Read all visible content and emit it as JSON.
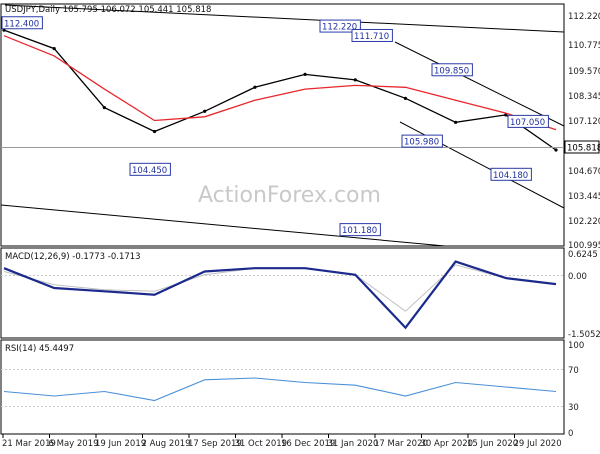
{
  "header": {
    "text": "USDJPY,Daily  105.795 106.072 105.441 105.818"
  },
  "watermark": "ActionForex.com",
  "price_pane": {
    "y_ticks": [
      "112.220",
      "110.775",
      "109.570",
      "108.345",
      "107.120",
      "105.818",
      "104.670",
      "103.445",
      "102.220",
      "100.995"
    ],
    "last_price": "105.818"
  },
  "macd_pane": {
    "title": "MACD(12,26,9) -0.1773 -0.1713",
    "y_ticks": [
      "0.6245",
      "0.00",
      "-1.5052"
    ]
  },
  "rsi_pane": {
    "title": "RSI(14) 45.4497",
    "y_ticks": [
      "100",
      "70",
      "30",
      "0"
    ]
  },
  "x_axis": {
    "labels": [
      "21 Mar 2019",
      "6 May 2019",
      "19 Jun 2019",
      "2 Aug 2019",
      "17 Sep 2019",
      "31 Oct 2019",
      "16 Dec 2019",
      "31 Jan 2020",
      "17 Mar 2020",
      "30 Apr 2020",
      "15 Jun 2020",
      "29 Jul 2020"
    ]
  },
  "colors": {
    "candle": "#000000",
    "moving_average": "#e8262c",
    "macd": "#1b2a8c",
    "signal": "#c0c0c0",
    "rsi": "#4a90d9",
    "annotation": "#2a3aa8"
  },
  "chart_data": [
    {
      "type": "line",
      "title": "USDJPY,Daily  105.795 106.072 105.441 105.818",
      "y_scale": "linear",
      "ylim": [
        100.4,
        113.2
      ],
      "x": [
        "21 Mar 2019",
        "6 May 2019",
        "19 Jun 2019",
        "2 Aug 2019",
        "17 Sep 2019",
        "31 Oct 2019",
        "16 Dec 2019",
        "31 Jan 2020",
        "17 Mar 2020",
        "30 Apr 2020",
        "15 Jun 2020",
        "29 Jul 2020"
      ],
      "series": [
        {
          "values": [
            112.0,
            111.0,
            107.8,
            106.5,
            107.6,
            108.9,
            109.6,
            109.3,
            108.3,
            107.0,
            107.4,
            105.5
          ]
        },
        {
          "values": [
            111.7,
            110.6,
            108.8,
            107.1,
            107.3,
            108.2,
            108.8,
            109.0,
            108.9,
            108.2,
            107.5,
            106.6
          ]
        }
      ],
      "annotations": [
        {
          "label": "112.400",
          "value": 112.4
        },
        {
          "label": "104.450",
          "value": 104.45
        },
        {
          "label": "112.220",
          "value": 112.22
        },
        {
          "label": "111.710",
          "value": 111.71
        },
        {
          "label": "101.180",
          "value": 101.18
        },
        {
          "label": "109.850",
          "value": 109.85
        },
        {
          "label": "105.980",
          "value": 105.98
        },
        {
          "label": "107.050",
          "value": 107.05
        },
        {
          "label": "104.180",
          "value": 104.18
        }
      ],
      "last_value": 105.818,
      "grid": false
    },
    {
      "type": "line",
      "title": "MACD(12,26,9) -0.1773 -0.1713",
      "ylim": [
        -1.75,
        0.85
      ],
      "x": [
        "21 Mar 2019",
        "6 May 2019",
        "19 Jun 2019",
        "2 Aug 2019",
        "17 Sep 2019",
        "31 Oct 2019",
        "16 Dec 2019",
        "31 Jan 2020",
        "17 Mar 2020",
        "30 Apr 2020",
        "15 Jun 2020",
        "29 Jul 2020"
      ],
      "series": [
        {
          "values": [
            0.3,
            -0.3,
            -0.4,
            -0.5,
            0.2,
            0.3,
            0.3,
            0.1,
            -1.5,
            0.5,
            0.0,
            -0.18
          ]
        },
        {
          "values": [
            0.2,
            -0.2,
            -0.35,
            -0.4,
            0.1,
            0.3,
            0.3,
            0.1,
            -1.0,
            0.4,
            0.0,
            -0.17
          ]
        }
      ]
    },
    {
      "type": "line",
      "title": "RSI(14) 45.4497",
      "ylim": [
        0,
        100
      ],
      "x": [
        "21 Mar 2019",
        "6 May 2019",
        "19 Jun 2019",
        "2 Aug 2019",
        "17 Sep 2019",
        "31 Oct 2019",
        "16 Dec 2019",
        "31 Jan 2020",
        "17 Mar 2020",
        "30 Apr 2020",
        "15 Jun 2020",
        "29 Jul 2020"
      ],
      "series": [
        {
          "values": [
            45,
            40,
            45,
            35,
            58,
            60,
            55,
            52,
            40,
            55,
            50,
            45
          ]
        }
      ],
      "levels": [
        70,
        30
      ]
    }
  ]
}
